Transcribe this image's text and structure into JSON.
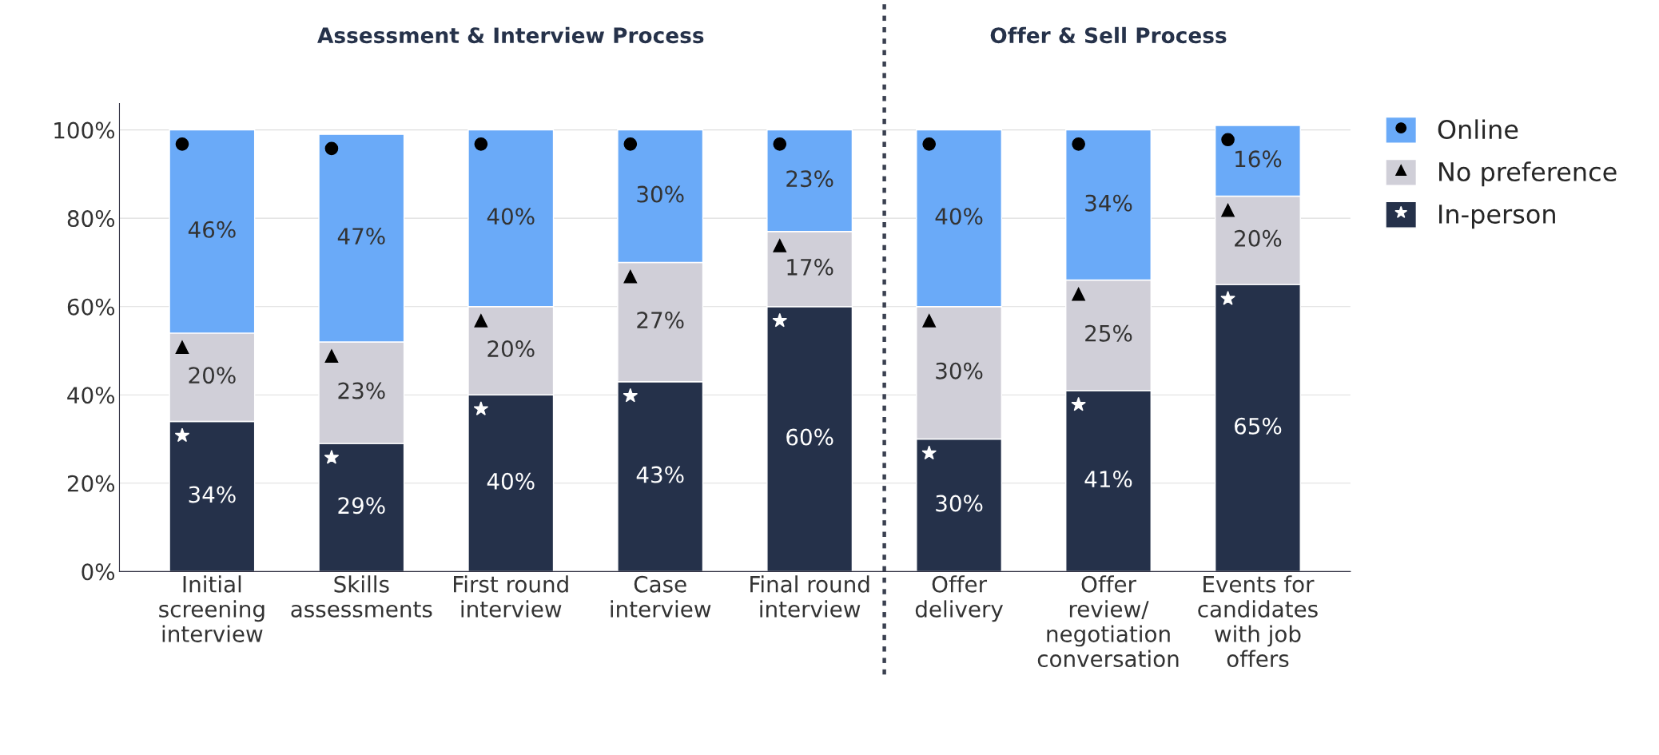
{
  "chart_data": {
    "type": "bar",
    "stacked": true,
    "categories": [
      "Initial screening interview",
      "Skills assessments",
      "First round interview",
      "Case interview",
      "Final round interview",
      "Offer delivery",
      "Offer review/ negotiation conversation",
      "Events for candidates with job offers"
    ],
    "series": [
      {
        "name": "In-person",
        "color": "#25314a",
        "marker": "star",
        "values": [
          34,
          29,
          40,
          43,
          60,
          30,
          41,
          65
        ],
        "value_labels": [
          "34%",
          "29%",
          "40%",
          "43%",
          "60%",
          "30%",
          "41%",
          "65%"
        ]
      },
      {
        "name": "No preference",
        "color": "#d0cfd8",
        "marker": "triangle",
        "values": [
          20,
          23,
          20,
          27,
          17,
          30,
          25,
          20
        ],
        "value_labels": [
          "20%",
          "23%",
          "20%",
          "27%",
          "17%",
          "30%",
          "25%",
          "20%"
        ]
      },
      {
        "name": "Online",
        "color": "#6aaaf8",
        "marker": "circle",
        "values": [
          46,
          47,
          40,
          30,
          23,
          40,
          34,
          16
        ],
        "value_labels": [
          "46%",
          "47%",
          "40%",
          "30%",
          "23%",
          "40%",
          "34%",
          "16%"
        ]
      }
    ],
    "ylim": [
      0,
      106
    ],
    "yticks": [
      {
        "value": 0,
        "label": "0%"
      },
      {
        "value": 20,
        "label": "20%"
      },
      {
        "value": 40,
        "label": "40%"
      },
      {
        "value": 60,
        "label": "60%"
      },
      {
        "value": 80,
        "label": "80%"
      },
      {
        "value": 100,
        "label": "100%"
      }
    ],
    "grid": "y",
    "legend": "right",
    "annotations": [
      "Assessment & Interview Process",
      "Offer & Sell Process"
    ]
  }
}
